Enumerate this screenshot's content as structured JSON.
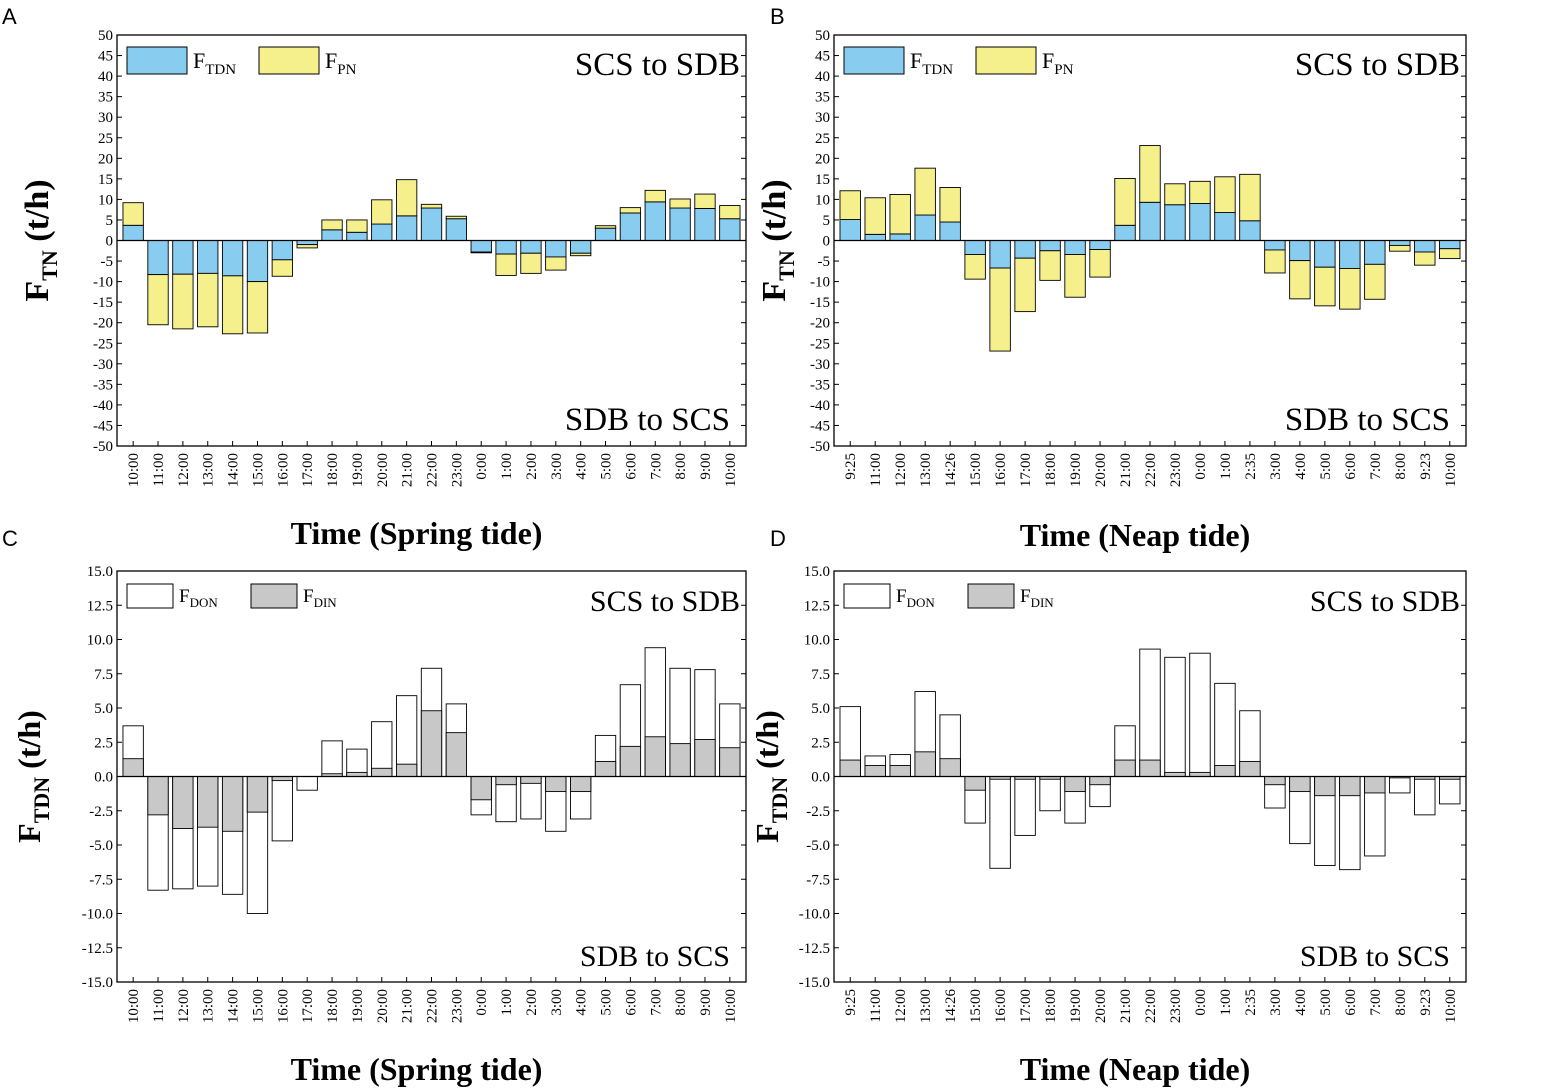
{
  "colors": {
    "tdn": "#88cdf0",
    "pn": "#f5f08c",
    "don": "#ffffff",
    "din": "#c8c8c8",
    "axis": "#000000"
  },
  "chart_data": [
    {
      "panel": "A",
      "type": "bar",
      "stacking": "diverging",
      "title": "",
      "ylabel_main": "F",
      "ylabel_sub": "TN",
      "ylabel_unit": "(t/h)",
      "xlabel": "Time (Spring tide)",
      "ylim": [
        -50,
        50
      ],
      "yticks": [
        "-50",
        "-45",
        "-40",
        "-35",
        "-30",
        "-25",
        "-20",
        "-15",
        "-10",
        "-5",
        "0",
        "5",
        "10",
        "15",
        "20",
        "25",
        "30",
        "35",
        "40",
        "45",
        "50"
      ],
      "annotation_top": "SCS to SDB",
      "annotation_bottom": "SDB to SCS",
      "legend_position": "top-left",
      "categories": [
        "10:00",
        "11:00",
        "12:00",
        "13:00",
        "14:00",
        "15:00",
        "16:00",
        "17:00",
        "18:00",
        "19:00",
        "20:00",
        "21:00",
        "22:00",
        "23:00",
        "0:00",
        "1:00",
        "2:00",
        "3:00",
        "4:00",
        "5:00",
        "6:00",
        "7:00",
        "8:00",
        "9:00",
        "10:00"
      ],
      "series": [
        {
          "name": "F",
          "sub": "TDN",
          "color_key": "tdn",
          "values": [
            3.7,
            -8.3,
            -8.2,
            -8.0,
            -8.6,
            -10.0,
            -4.7,
            -1.0,
            2.6,
            2.0,
            4.0,
            6.0,
            7.9,
            5.3,
            -2.8,
            -3.3,
            -3.1,
            -4.0,
            -3.1,
            3.0,
            6.7,
            9.4,
            7.9,
            7.8,
            5.3
          ]
        },
        {
          "name": "F",
          "sub": "PN",
          "color_key": "pn",
          "values": [
            5.5,
            -12.2,
            -13.3,
            -13.0,
            -14.1,
            -12.5,
            -4.0,
            -0.8,
            2.4,
            3.0,
            5.9,
            8.8,
            0.9,
            0.6,
            -0.2,
            -5.2,
            -4.9,
            -3.2,
            -0.6,
            0.6,
            1.3,
            2.8,
            2.2,
            3.5,
            3.2
          ]
        }
      ]
    },
    {
      "panel": "B",
      "type": "bar",
      "stacking": "diverging",
      "title": "",
      "ylabel_main": "F",
      "ylabel_sub": "TN",
      "ylabel_unit": "(t/h)",
      "xlabel": "Time (Neap tide)",
      "ylim": [
        -50,
        50
      ],
      "yticks": [
        "-50",
        "-45",
        "-40",
        "-35",
        "-30",
        "-25",
        "-20",
        "-15",
        "-10",
        "-5",
        "0",
        "5",
        "10",
        "15",
        "20",
        "25",
        "30",
        "35",
        "40",
        "45",
        "50"
      ],
      "annotation_top": "SCS to SDB",
      "annotation_bottom": "SDB to SCS",
      "legend_position": "top-left",
      "categories": [
        "9:25",
        "11:00",
        "12:00",
        "13:00",
        "14:26",
        "15:00",
        "16:00",
        "17:00",
        "18:00",
        "19:00",
        "20:00",
        "21:00",
        "22:00",
        "23:00",
        "0:00",
        "1:00",
        "2:35",
        "3:00",
        "4:00",
        "5:00",
        "6:00",
        "7:00",
        "8:00",
        "9:23",
        "10:00"
      ],
      "series": [
        {
          "name": "F",
          "sub": "TDN",
          "color_key": "tdn",
          "values": [
            5.1,
            1.5,
            1.6,
            6.2,
            4.5,
            -3.4,
            -6.7,
            -4.3,
            -2.5,
            -3.4,
            -2.2,
            3.7,
            9.3,
            8.7,
            9.0,
            6.8,
            4.8,
            -2.3,
            -4.9,
            -6.5,
            -6.8,
            -5.8,
            -1.2,
            -2.8,
            -2.0
          ]
        },
        {
          "name": "F",
          "sub": "PN",
          "color_key": "pn",
          "values": [
            7.0,
            8.9,
            9.6,
            11.4,
            8.4,
            -6.0,
            -20.2,
            -13.0,
            -7.2,
            -10.4,
            -6.7,
            11.4,
            13.8,
            5.1,
            5.4,
            8.7,
            11.3,
            -5.6,
            -9.3,
            -9.4,
            -9.9,
            -8.5,
            -1.4,
            -3.2,
            -2.4
          ]
        }
      ]
    },
    {
      "panel": "C",
      "type": "bar",
      "stacking": "overlay",
      "title": "",
      "ylabel_main": "F",
      "ylabel_sub": "TDN",
      "ylabel_unit": "(t/h)",
      "xlabel": "Time (Spring tide)",
      "ylim": [
        -15,
        15
      ],
      "yticks": [
        "-15.0",
        "-12.5",
        "-10.0",
        "-7.5",
        "-5.0",
        "-2.5",
        "0.0",
        "2.5",
        "5.0",
        "7.5",
        "10.0",
        "12.5",
        "15.0"
      ],
      "annotation_top": "SCS to SDB",
      "annotation_bottom": "SDB to SCS",
      "legend_position": "top-left",
      "categories": [
        "10:00",
        "11:00",
        "12:00",
        "13:00",
        "14:00",
        "15:00",
        "16:00",
        "17:00",
        "18:00",
        "19:00",
        "20:00",
        "21:00",
        "22:00",
        "23:00",
        "0:00",
        "1:00",
        "2:00",
        "3:00",
        "4:00",
        "5:00",
        "6:00",
        "7:00",
        "8:00",
        "9:00",
        "10:00"
      ],
      "series": [
        {
          "name": "F",
          "sub": "DON",
          "color_key": "don",
          "values": [
            3.7,
            -8.3,
            -8.2,
            -8.0,
            -8.6,
            -10.0,
            -4.7,
            -1.0,
            2.6,
            2.0,
            4.0,
            5.9,
            7.9,
            5.3,
            -2.8,
            -3.3,
            -3.1,
            -4.0,
            -3.1,
            3.0,
            6.7,
            9.4,
            7.9,
            7.8,
            5.3
          ]
        },
        {
          "name": "F",
          "sub": "DIN",
          "color_key": "din",
          "values": [
            1.3,
            -2.8,
            -3.8,
            -3.7,
            -4.0,
            -2.6,
            -0.3,
            0.0,
            0.2,
            0.3,
            0.6,
            0.9,
            4.8,
            3.2,
            -1.7,
            -0.6,
            -0.5,
            -1.1,
            -1.1,
            1.1,
            2.2,
            2.9,
            2.4,
            2.7,
            2.1
          ]
        }
      ]
    },
    {
      "panel": "D",
      "type": "bar",
      "stacking": "overlay",
      "title": "",
      "ylabel_main": "F",
      "ylabel_sub": "TDN",
      "ylabel_unit": "(t/h)",
      "xlabel": "Time (Neap tide)",
      "ylim": [
        -15,
        15
      ],
      "yticks": [
        "-15.0",
        "-12.5",
        "-10.0",
        "-7.5",
        "-5.0",
        "-2.5",
        "0.0",
        "2.5",
        "5.0",
        "7.5",
        "10.0",
        "12.5",
        "15.0"
      ],
      "annotation_top": "SCS to SDB",
      "annotation_bottom": "SDB to SCS",
      "legend_position": "top-left",
      "categories": [
        "9:25",
        "11:00",
        "12:00",
        "13:00",
        "14:26",
        "15:00",
        "16:00",
        "17:00",
        "18:00",
        "19:00",
        "20:00",
        "21:00",
        "22:00",
        "23:00",
        "0:00",
        "1:00",
        "2:35",
        "3:00",
        "4:00",
        "5:00",
        "6:00",
        "7:00",
        "8:00",
        "9:23",
        "10:00"
      ],
      "series": [
        {
          "name": "F",
          "sub": "DON",
          "color_key": "don",
          "values": [
            5.1,
            1.5,
            1.6,
            6.2,
            4.5,
            -3.4,
            -6.7,
            -4.3,
            -2.5,
            -3.4,
            -2.2,
            3.7,
            9.3,
            8.7,
            9.0,
            6.8,
            4.8,
            -2.3,
            -4.9,
            -6.5,
            -6.8,
            -5.8,
            -1.2,
            -2.8,
            -2.0
          ]
        },
        {
          "name": "F",
          "sub": "DIN",
          "color_key": "din",
          "values": [
            1.2,
            0.8,
            0.8,
            1.8,
            1.3,
            -1.0,
            -0.2,
            -0.2,
            -0.2,
            -1.1,
            -0.6,
            1.2,
            1.2,
            0.3,
            0.3,
            0.8,
            1.1,
            -0.6,
            -1.1,
            -1.4,
            -1.4,
            -1.2,
            -0.1,
            -0.2,
            -0.2
          ]
        }
      ]
    }
  ]
}
